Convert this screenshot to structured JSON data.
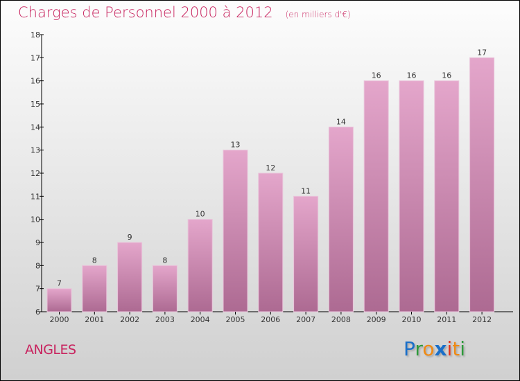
{
  "header": {
    "title": "Charges de Personnel 2000 à 2012",
    "unit": "(en milliers d'€)"
  },
  "footer": {
    "city": "ANGLES",
    "logo": "Proxiti"
  },
  "colors": {
    "title": "#c8245f",
    "bar_top": "#e4a6cb",
    "bar_bottom": "#ad6a92"
  },
  "chart_data": {
    "type": "bar",
    "title": "Charges de Personnel 2000 à 2012",
    "ylabel": "(en milliers d'€)",
    "xlabel": "",
    "categories": [
      "2000",
      "2001",
      "2002",
      "2003",
      "2004",
      "2005",
      "2006",
      "2007",
      "2008",
      "2009",
      "2010",
      "2011",
      "2012"
    ],
    "values": [
      7,
      8,
      9,
      8,
      10,
      13,
      12,
      11,
      14,
      16,
      16,
      16,
      17
    ],
    "ylim": [
      6,
      18
    ],
    "yticks": [
      6,
      7,
      8,
      9,
      10,
      11,
      12,
      13,
      14,
      15,
      16,
      17,
      18
    ],
    "grid": false
  }
}
